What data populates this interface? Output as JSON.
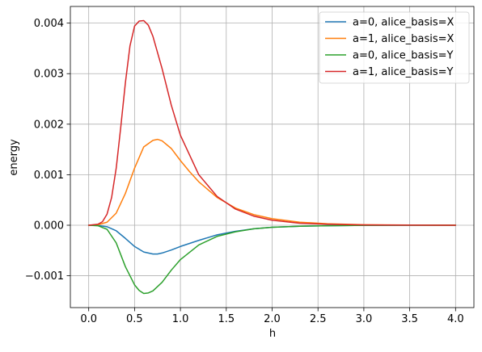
{
  "chart_data": {
    "type": "line",
    "title": "",
    "xlabel": "h",
    "ylabel": "energy",
    "xlim": [
      -0.2,
      4.2
    ],
    "ylim": [
      -0.00163,
      0.00433
    ],
    "xticks": [
      0.0,
      0.5,
      1.0,
      1.5,
      2.0,
      2.5,
      3.0,
      3.5,
      4.0
    ],
    "xtick_labels": [
      "0.0",
      "0.5",
      "1.0",
      "1.5",
      "2.0",
      "2.5",
      "3.0",
      "3.5",
      "4.0"
    ],
    "yticks": [
      -0.001,
      0.0,
      0.001,
      0.002,
      0.003,
      0.004
    ],
    "ytick_labels": [
      "−0.001",
      "0.000",
      "0.001",
      "0.002",
      "0.003",
      "0.004"
    ],
    "grid": true,
    "legend_position": "top-right",
    "series": [
      {
        "name": "a=0, alice_basis=X",
        "color": "#1f77b4",
        "x": [
          0.0,
          0.1,
          0.2,
          0.3,
          0.4,
          0.5,
          0.6,
          0.7,
          0.75,
          0.8,
          0.9,
          1.0,
          1.2,
          1.4,
          1.6,
          1.8,
          2.0,
          2.3,
          2.6,
          3.0,
          3.5,
          4.0
        ],
        "y": [
          0.0,
          -5e-06,
          -3e-05,
          -0.00011,
          -0.00026,
          -0.00042,
          -0.00053,
          -0.00057,
          -0.00057,
          -0.00055,
          -0.00049,
          -0.00042,
          -0.0003,
          -0.00019,
          -0.00012,
          -7e-05,
          -4e-05,
          -2e-05,
          -1e-05,
          -3e-06,
          -1e-06,
          0.0
        ]
      },
      {
        "name": "a=1, alice_basis=X",
        "color": "#ff7f0e",
        "x": [
          0.0,
          0.1,
          0.2,
          0.3,
          0.4,
          0.5,
          0.6,
          0.7,
          0.75,
          0.8,
          0.9,
          1.0,
          1.1,
          1.2,
          1.4,
          1.6,
          1.8,
          2.0,
          2.3,
          2.6,
          3.0,
          3.5,
          4.0
        ],
        "y": [
          0.0,
          1e-05,
          6e-05,
          0.00024,
          0.00063,
          0.00113,
          0.00155,
          0.00168,
          0.0017,
          0.00167,
          0.00152,
          0.00128,
          0.00106,
          0.00086,
          0.00055,
          0.00034,
          0.00021,
          0.00013,
          6e-05,
          3e-05,
          1e-05,
          3e-06,
          1e-06
        ]
      },
      {
        "name": "a=0, alice_basis=Y",
        "color": "#2ca02c",
        "x": [
          0.0,
          0.1,
          0.2,
          0.3,
          0.4,
          0.5,
          0.55,
          0.6,
          0.65,
          0.7,
          0.8,
          0.9,
          1.0,
          1.2,
          1.4,
          1.6,
          1.8,
          2.0,
          2.3,
          2.6,
          3.0,
          3.5,
          4.0
        ],
        "y": [
          0.0,
          -1e-05,
          -8e-05,
          -0.00035,
          -0.00082,
          -0.00118,
          -0.00129,
          -0.00135,
          -0.00134,
          -0.0013,
          -0.00113,
          -0.00089,
          -0.00068,
          -0.00039,
          -0.00022,
          -0.00013,
          -7e-05,
          -4e-05,
          -2e-05,
          -1e-05,
          -3e-06,
          -1e-06,
          0.0
        ]
      },
      {
        "name": "a=1, alice_basis=Y",
        "color": "#d62728",
        "x": [
          0.0,
          0.1,
          0.15,
          0.2,
          0.25,
          0.3,
          0.35,
          0.4,
          0.45,
          0.5,
          0.55,
          0.6,
          0.65,
          0.7,
          0.8,
          0.9,
          1.0,
          1.2,
          1.4,
          1.6,
          1.8,
          2.0,
          2.3,
          2.6,
          3.0,
          3.5,
          4.0
        ],
        "y": [
          0.0,
          2e-05,
          7e-05,
          0.00022,
          0.00055,
          0.00113,
          0.00195,
          0.00282,
          0.00355,
          0.00394,
          0.00404,
          0.00405,
          0.00396,
          0.00374,
          0.0031,
          0.00238,
          0.00178,
          0.001,
          0.00057,
          0.00032,
          0.00018,
          0.0001,
          4e-05,
          2e-05,
          6e-06,
          1e-06,
          0.0
        ]
      }
    ]
  }
}
